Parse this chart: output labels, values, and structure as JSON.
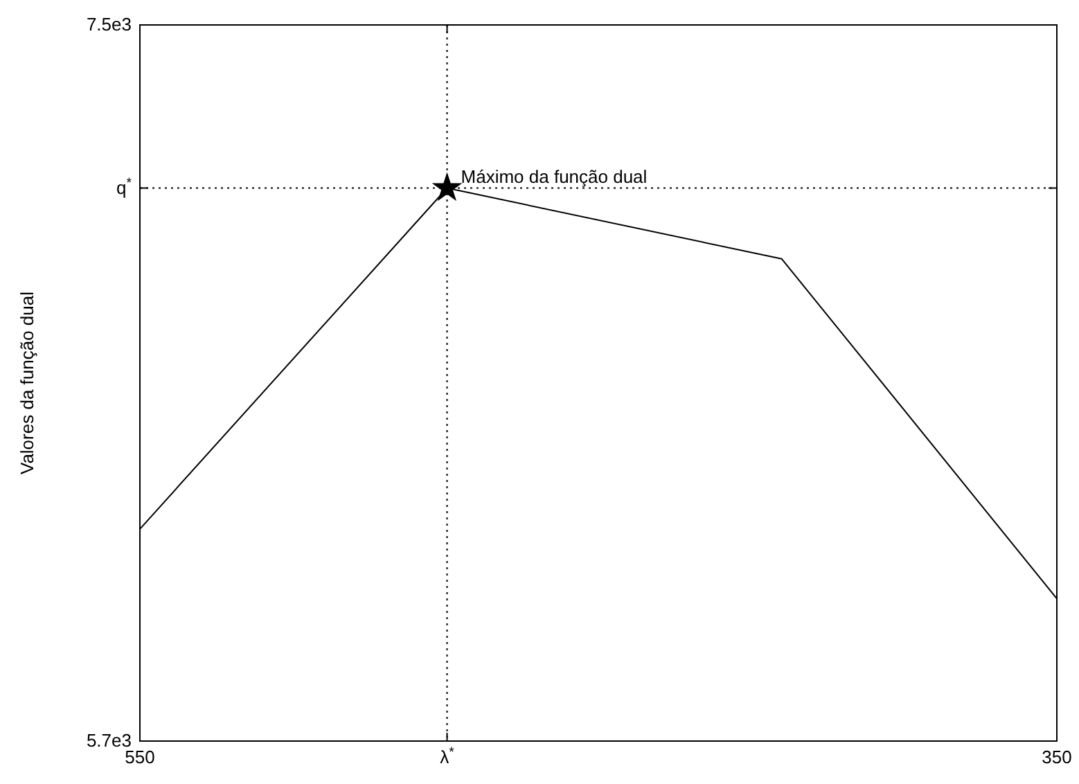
{
  "chart_data": {
    "type": "line",
    "ylabel": "Valores da função dual",
    "xlim": [
      550,
      350
    ],
    "xticks": [
      550,
      {
        "value": 483,
        "label": "λ$^{*}$"
      },
      350
    ],
    "ylim": [
      5700,
      7500
    ],
    "yticks": [
      {
        "value": 5700,
        "label": "5.7e3"
      },
      {
        "value": 7090,
        "label": "q$^{*}$"
      },
      {
        "value": 7500,
        "label": "7.5e3"
      }
    ],
    "grid": false,
    "line_style": "solid",
    "ref_lines": [
      {
        "axis": "x",
        "value": 483,
        "line_style": "dotted",
        "color": "#000000"
      },
      {
        "axis": "y",
        "value": 7090,
        "line_style": "dotted",
        "color": "#000000"
      }
    ],
    "series": [
      {
        "color": "#000000",
        "x": [
          550,
          483,
          410,
          350
        ],
        "values": [
          6233,
          7090,
          6912,
          6058
        ]
      },
      {
        "type": "scatter",
        "marker": "star",
        "color": "#000000",
        "x": [
          483
        ],
        "values": [
          7090
        ]
      }
    ],
    "annotations": [
      {
        "text": "Máximo da função dual",
        "x": 483,
        "y": 7090
      }
    ]
  }
}
